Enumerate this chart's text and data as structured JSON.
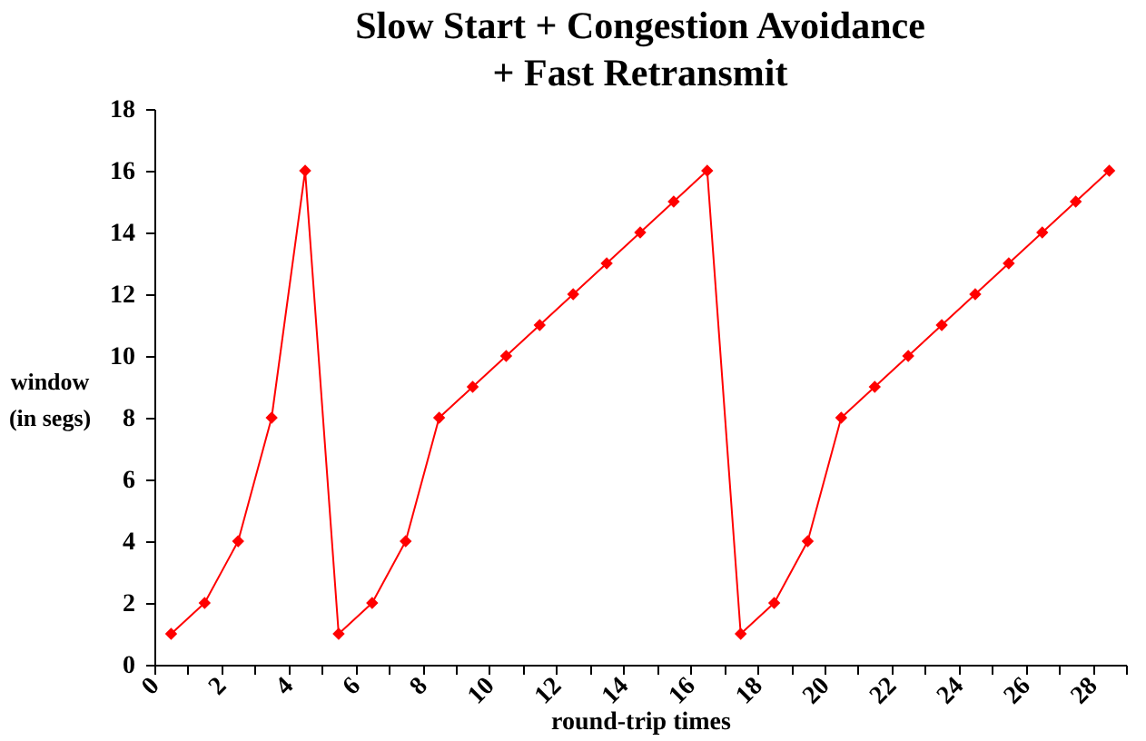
{
  "chart_data": {
    "type": "line",
    "title": "Slow Start + Congestion Avoidance\n+ Fast Retransmit",
    "xlabel": "round-trip times",
    "ylabel": "window\n(in segs)",
    "x": [
      0.5,
      1.5,
      2.5,
      3.5,
      4.5,
      5.5,
      6.5,
      7.5,
      8.5,
      9.5,
      10.5,
      11.5,
      12.5,
      13.5,
      14.5,
      15.5,
      16.5,
      17.5,
      18.5,
      19.5,
      20.5,
      21.5,
      22.5,
      23.5,
      24.5,
      25.5,
      26.5,
      27.5,
      28.5
    ],
    "series": [
      {
        "color": "#ff0000",
        "values": [
          1,
          2,
          4,
          8,
          16,
          1,
          2,
          4,
          8,
          9,
          10,
          11,
          12,
          13,
          14,
          15,
          16,
          1,
          2,
          4,
          8,
          9,
          10,
          11,
          12,
          13,
          14,
          15,
          16
        ]
      }
    ],
    "xlim": [
      0,
      29
    ],
    "xticks": [
      0,
      {
        "value": 1,
        "label": null
      },
      2,
      {
        "value": 3,
        "label": null
      },
      4,
      {
        "value": 5,
        "label": null
      },
      6,
      {
        "value": 7,
        "label": null
      },
      8,
      {
        "value": 9,
        "label": null
      },
      10,
      {
        "value": 11,
        "label": null
      },
      12,
      {
        "value": 13,
        "label": null
      },
      14,
      {
        "value": 15,
        "label": null
      },
      16,
      {
        "value": 17,
        "label": null
      },
      18,
      {
        "value": 19,
        "label": null
      },
      20,
      {
        "value": 21,
        "label": null
      },
      22,
      {
        "value": 23,
        "label": null
      },
      24,
      {
        "value": 25,
        "label": null
      },
      26,
      {
        "value": 27,
        "label": null
      },
      28,
      {
        "value": 29,
        "label": null
      }
    ],
    "ylim": [
      0,
      18
    ],
    "yticks": [
      0,
      2,
      4,
      6,
      8,
      10,
      12,
      14,
      16,
      18
    ],
    "grid": false,
    "legend": false,
    "marker": "diamond",
    "line_style": "solid"
  }
}
